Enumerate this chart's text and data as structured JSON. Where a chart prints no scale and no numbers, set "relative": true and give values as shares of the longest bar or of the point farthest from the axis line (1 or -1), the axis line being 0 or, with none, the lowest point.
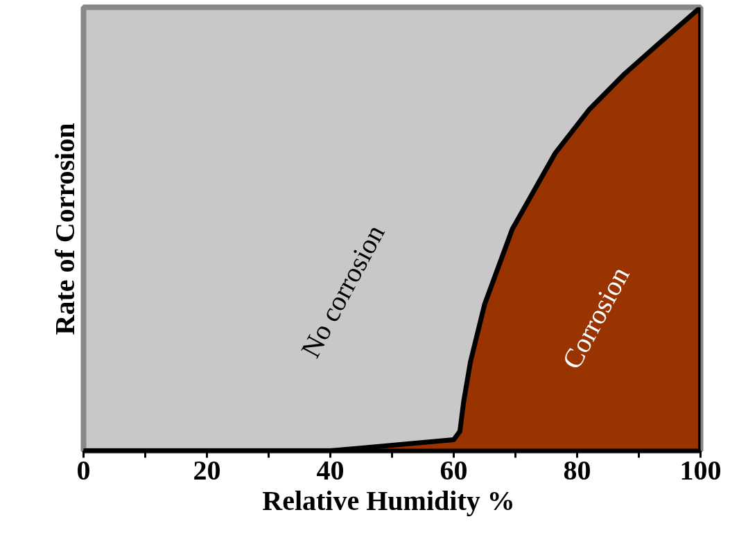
{
  "chart_data": {
    "type": "area",
    "relative": true,
    "xlabel": "Relative Humidity  %",
    "ylabel": "Rate of Corrosion",
    "x": [
      0,
      40,
      60,
      61,
      61.6,
      62.7,
      65,
      69.5,
      76.4,
      82,
      87.7,
      93.4,
      100
    ],
    "series": [
      {
        "color": "#993300",
        "values": [
          0,
          0,
          0.025,
          0.044,
          0.11,
          0.2,
          0.33,
          0.5,
          0.67,
          0.77,
          0.85,
          0.92,
          1
        ]
      }
    ],
    "xlim": [
      0,
      100
    ],
    "xticks": [
      0,
      {
        "value": 10,
        "label": null
      },
      20,
      {
        "value": 30,
        "label": null
      },
      40,
      {
        "value": 50,
        "label": null
      },
      60,
      {
        "value": 70,
        "label": null
      },
      80,
      {
        "value": 90,
        "label": null
      },
      100
    ],
    "annotations": [
      "No corrosion",
      "Corrosion"
    ],
    "grid": false,
    "marker": "none",
    "line_style": "solid"
  }
}
